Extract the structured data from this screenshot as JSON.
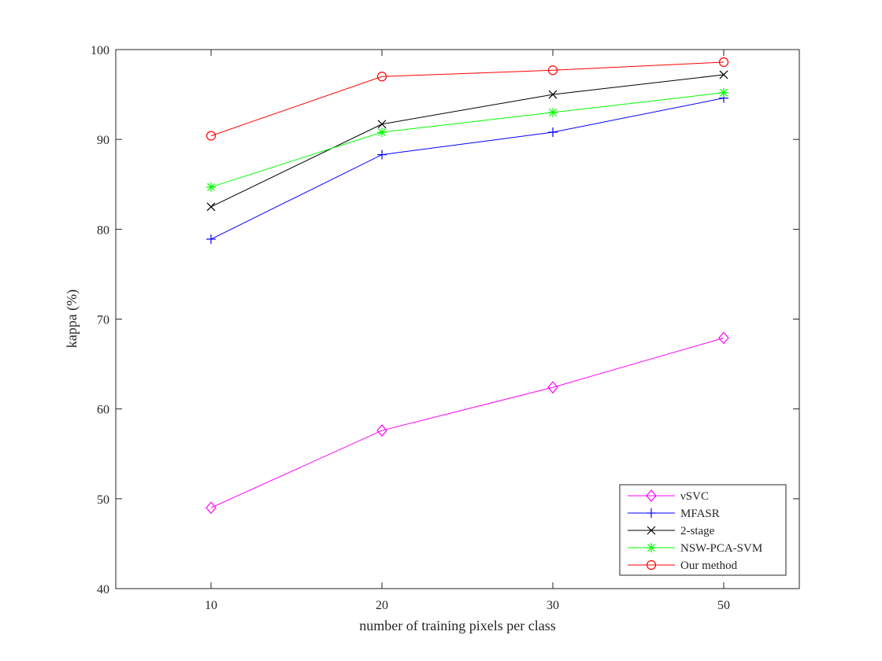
{
  "chart_data": {
    "type": "line",
    "title": "",
    "xlabel": "number of training pixels per class",
    "ylabel": "kappa (%)",
    "categories": [
      "10",
      "20",
      "30",
      "50"
    ],
    "ylim": [
      40,
      100
    ],
    "yticks": [
      "40",
      "50",
      "60",
      "70",
      "80",
      "90",
      "100"
    ],
    "grid": false,
    "legend_position": "bottom-right",
    "series": [
      {
        "name": "νSVC",
        "marker": "diamond",
        "color": "#ff00ff",
        "values": [
          49.0,
          57.6,
          62.4,
          67.9
        ]
      },
      {
        "name": "MFASR",
        "marker": "plus",
        "color": "#0000ff",
        "values": [
          78.9,
          88.3,
          90.8,
          94.6
        ]
      },
      {
        "name": "2-stage",
        "marker": "cross",
        "color": "#000000",
        "values": [
          82.5,
          91.7,
          95.0,
          97.2
        ]
      },
      {
        "name": "NSW-PCA-SVM",
        "marker": "star",
        "color": "#00ff00",
        "values": [
          84.7,
          90.8,
          93.0,
          95.2
        ]
      },
      {
        "name": "Our method",
        "marker": "circle",
        "color": "#ff0000",
        "values": [
          90.4,
          97.0,
          97.7,
          98.6
        ]
      }
    ]
  }
}
